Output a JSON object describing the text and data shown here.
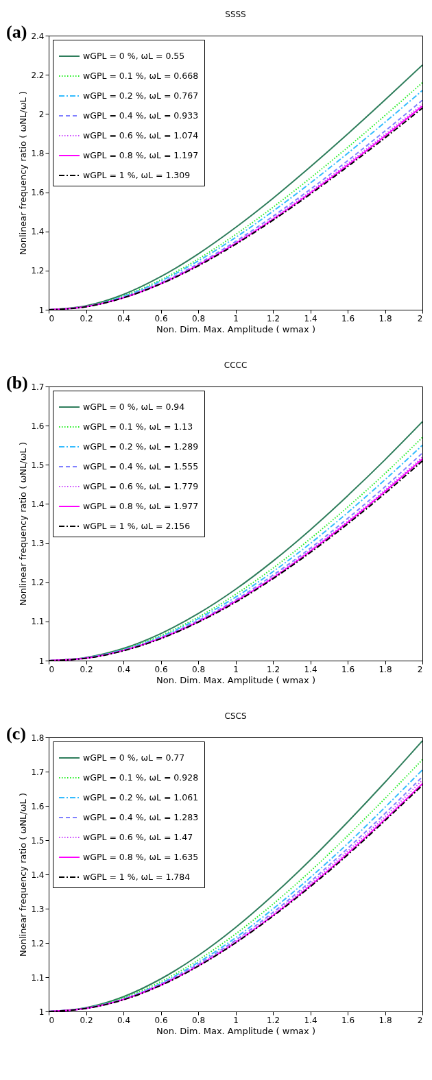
{
  "chart_data": [
    {
      "type": "line",
      "title": "SSSS",
      "annotations": [
        "(a)"
      ],
      "xlabel": "Non. Dim. Max. Amplitude ( wmax )",
      "ylabel": "Nonlinear frequency ratio ( ωNL/ωL )",
      "x": [
        0,
        0.2,
        0.4,
        0.6,
        0.8,
        1,
        1.2,
        1.4,
        1.6,
        1.8,
        2
      ],
      "xlim": [
        0,
        2
      ],
      "xticks": [
        0,
        0.2,
        0.4,
        0.6,
        0.8,
        1,
        1.2,
        1.4,
        1.6,
        1.8,
        2
      ],
      "ylim": [
        1,
        2.4
      ],
      "yticks": [
        1,
        1.2,
        1.4,
        1.6,
        1.8,
        2,
        2.2,
        2.4
      ],
      "grid": false,
      "legend": "top left",
      "series": [
        {
          "name": "wGPL = 0 %, ωL = 0.55",
          "color": "#2e7d5b",
          "line_style": "solid",
          "values": [
            1,
            1.02,
            1.078,
            1.169,
            1.285,
            1.42,
            1.569,
            1.73,
            1.898,
            2.072,
            2.25
          ]
        },
        {
          "name": "wGPL = 0.1 %, ωL = 0.668",
          "color": "#22ee22",
          "line_style": "dotted",
          "values": [
            1,
            1.018,
            1.071,
            1.153,
            1.259,
            1.384,
            1.523,
            1.672,
            1.829,
            1.992,
            2.16
          ]
        },
        {
          "name": "wGPL = 0.2 %, ωL = 0.767",
          "color": "#33bbff",
          "line_style": "dashdot",
          "values": [
            1,
            1.017,
            1.068,
            1.147,
            1.249,
            1.369,
            1.503,
            1.647,
            1.799,
            1.958,
            2.12
          ]
        },
        {
          "name": "wGPL = 0.4 %, ωL = 0.933",
          "color": "#8080ff",
          "line_style": "dashed",
          "values": [
            1,
            1.016,
            1.064,
            1.138,
            1.235,
            1.349,
            1.477,
            1.615,
            1.761,
            1.913,
            2.07
          ]
        },
        {
          "name": "wGPL = 0.6 %, ωL = 1.074",
          "color": "#cc44ff",
          "line_style": "dotted",
          "values": [
            1,
            1.016,
            1.062,
            1.135,
            1.23,
            1.342,
            1.467,
            1.603,
            1.747,
            1.896,
            2.05
          ]
        },
        {
          "name": "wGPL = 0.8 %, ωL = 1.197",
          "color": "#ff00ff",
          "line_style": "solid",
          "values": [
            1,
            1.016,
            1.061,
            1.133,
            1.227,
            1.338,
            1.462,
            1.596,
            1.738,
            1.887,
            2.04
          ]
        },
        {
          "name": "wGPL = 1 %, ωL = 1.309",
          "color": "#000000",
          "line_style": "dashdot",
          "values": [
            1,
            1.015,
            1.061,
            1.132,
            1.224,
            1.334,
            1.457,
            1.59,
            1.731,
            1.878,
            2.03
          ]
        }
      ]
    },
    {
      "type": "line",
      "title": "CCCC",
      "annotations": [
        "(b)"
      ],
      "xlabel": "Non. Dim. Max. Amplitude ( wmax )",
      "ylabel": "Nonlinear frequency ratio ( ωNL/ωL )",
      "x": [
        0,
        0.2,
        0.4,
        0.6,
        0.8,
        1,
        1.2,
        1.4,
        1.6,
        1.8,
        2
      ],
      "xlim": [
        0,
        2
      ],
      "xticks": [
        0,
        0.2,
        0.4,
        0.6,
        0.8,
        1,
        1.2,
        1.4,
        1.6,
        1.8,
        2
      ],
      "ylim": [
        1,
        1.7
      ],
      "yticks": [
        1,
        1.1,
        1.2,
        1.3,
        1.4,
        1.5,
        1.6,
        1.7
      ],
      "grid": false,
      "legend": "top left",
      "series": [
        {
          "name": "wGPL = 0 %, ωL = 0.94",
          "color": "#2e7d5b",
          "line_style": "solid",
          "values": [
            1,
            1.008,
            1.031,
            1.069,
            1.12,
            1.182,
            1.254,
            1.334,
            1.421,
            1.513,
            1.61
          ]
        },
        {
          "name": "wGPL = 0.1 %, ωL = 1.13",
          "color": "#22ee22",
          "line_style": "dotted",
          "values": [
            1,
            1.007,
            1.029,
            1.064,
            1.111,
            1.169,
            1.236,
            1.311,
            1.392,
            1.478,
            1.57
          ]
        },
        {
          "name": "wGPL = 0.2 %, ωL = 1.289",
          "color": "#33bbff",
          "line_style": "dashdot",
          "values": [
            1,
            1.007,
            1.028,
            1.061,
            1.107,
            1.162,
            1.227,
            1.299,
            1.378,
            1.462,
            1.55
          ]
        },
        {
          "name": "wGPL = 0.4 %, ωL = 1.555",
          "color": "#8080ff",
          "line_style": "dashed",
          "values": [
            1,
            1.007,
            1.026,
            1.059,
            1.102,
            1.155,
            1.218,
            1.287,
            1.363,
            1.444,
            1.53
          ]
        },
        {
          "name": "wGPL = 0.6 %, ωL = 1.779",
          "color": "#cc44ff",
          "line_style": "dotted",
          "values": [
            1,
            1.007,
            1.026,
            1.057,
            1.1,
            1.152,
            1.213,
            1.282,
            1.356,
            1.436,
            1.52
          ]
        },
        {
          "name": "wGPL = 0.8 %, ωL = 1.977",
          "color": "#ff00ff",
          "line_style": "solid",
          "values": [
            1,
            1.006,
            1.026,
            1.057,
            1.099,
            1.151,
            1.211,
            1.279,
            1.353,
            1.432,
            1.515
          ]
        },
        {
          "name": "wGPL = 1 %, ωL = 2.156",
          "color": "#000000",
          "line_style": "dashdot",
          "values": [
            1,
            1.006,
            1.025,
            1.056,
            1.098,
            1.149,
            1.209,
            1.276,
            1.349,
            1.427,
            1.51
          ]
        }
      ]
    },
    {
      "type": "line",
      "title": "CSCS",
      "annotations": [
        "(c)"
      ],
      "xlabel": "Non. Dim. Max. Amplitude ( wmax )",
      "ylabel": "Nonlinear frequency ratio ( ωNL/ωL )",
      "x": [
        0,
        0.2,
        0.4,
        0.6,
        0.8,
        1,
        1.2,
        1.4,
        1.6,
        1.8,
        2
      ],
      "xlim": [
        0,
        2
      ],
      "xticks": [
        0,
        0.2,
        0.4,
        0.6,
        0.8,
        1,
        1.2,
        1.4,
        1.6,
        1.8,
        2
      ],
      "ylim": [
        1,
        1.8
      ],
      "yticks": [
        1,
        1.1,
        1.2,
        1.3,
        1.4,
        1.5,
        1.6,
        1.7,
        1.8
      ],
      "grid": false,
      "legend": "top left",
      "series": [
        {
          "name": "wGPL = 0 %, ωL = 0.77",
          "color": "#2e7d5b",
          "line_style": "solid",
          "values": [
            1,
            1.011,
            1.043,
            1.095,
            1.163,
            1.245,
            1.339,
            1.442,
            1.553,
            1.669,
            1.79
          ]
        },
        {
          "name": "wGPL = 0.1 %, ωL = 0.928",
          "color": "#22ee22",
          "line_style": "dotted",
          "values": [
            1,
            1.01,
            1.04,
            1.087,
            1.15,
            1.226,
            1.313,
            1.409,
            1.513,
            1.622,
            1.735
          ]
        },
        {
          "name": "wGPL = 0.2 %, ωL = 1.061",
          "color": "#33bbff",
          "line_style": "dashdot",
          "values": [
            1,
            1.01,
            1.037,
            1.082,
            1.143,
            1.215,
            1.299,
            1.391,
            1.49,
            1.596,
            1.705
          ]
        },
        {
          "name": "wGPL = 0.4 %, ωL = 1.283",
          "color": "#8080ff",
          "line_style": "dashed",
          "values": [
            1,
            1.009,
            1.036,
            1.08,
            1.138,
            1.208,
            1.289,
            1.379,
            1.476,
            1.578,
            1.685
          ]
        },
        {
          "name": "wGPL = 0.6 %, ωL = 1.47",
          "color": "#cc44ff",
          "line_style": "dotted",
          "values": [
            1,
            1.009,
            1.035,
            1.078,
            1.135,
            1.205,
            1.284,
            1.373,
            1.468,
            1.569,
            1.675
          ]
        },
        {
          "name": "wGPL = 0.8 %, ωL = 1.635",
          "color": "#ff00ff",
          "line_style": "solid",
          "values": [
            1,
            1.009,
            1.035,
            1.077,
            1.133,
            1.201,
            1.28,
            1.367,
            1.461,
            1.561,
            1.665
          ]
        },
        {
          "name": "wGPL = 1 %, ωL = 1.784",
          "color": "#000000",
          "line_style": "dashdot",
          "values": [
            1,
            1.009,
            1.034,
            1.076,
            1.132,
            1.2,
            1.278,
            1.364,
            1.457,
            1.557,
            1.66
          ]
        }
      ]
    }
  ]
}
